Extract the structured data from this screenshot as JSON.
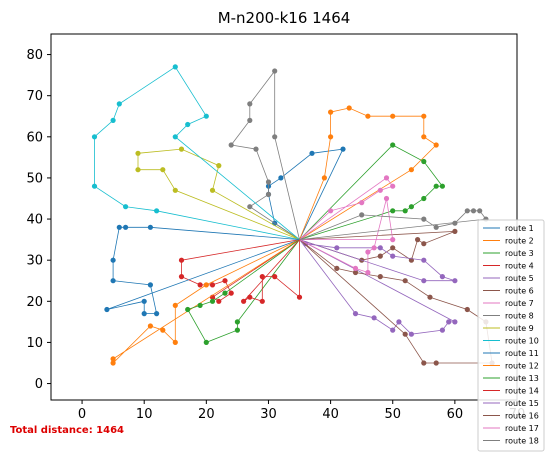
{
  "chart_data": {
    "type": "line",
    "title": "M-n200-k16 1464",
    "xlabel": "",
    "ylabel": "",
    "xlim": [
      -5,
      70
    ],
    "ylim": [
      -4,
      85
    ],
    "xticks": [
      0,
      10,
      20,
      30,
      40,
      50,
      60,
      70
    ],
    "yticks": [
      0,
      10,
      20,
      30,
      40,
      50,
      60,
      70,
      80
    ],
    "grid": false,
    "legend_position": "bottom-right",
    "annotation": {
      "text": "Total distance: 1464",
      "color": "#dd0000"
    },
    "depot": [
      35,
      35
    ],
    "series": [
      {
        "name": "route 1",
        "color": "#1f77b4",
        "points": [
          [
            35,
            35
          ],
          [
            31,
            39
          ],
          [
            30,
            46
          ],
          [
            30,
            48
          ],
          [
            32,
            50
          ],
          [
            37,
            56
          ],
          [
            42,
            57
          ],
          [
            35,
            35
          ]
        ]
      },
      {
        "name": "route 2",
        "color": "#ff7f0e",
        "points": [
          [
            35,
            35
          ],
          [
            39,
            50
          ],
          [
            40,
            60
          ],
          [
            40,
            66
          ],
          [
            43,
            67
          ],
          [
            46,
            65
          ],
          [
            50,
            65
          ],
          [
            55,
            65
          ],
          [
            55,
            60
          ],
          [
            57,
            58
          ],
          [
            53,
            52
          ],
          [
            35,
            35
          ]
        ]
      },
      {
        "name": "route 3",
        "color": "#2ca02c",
        "points": [
          [
            35,
            35
          ],
          [
            50,
            42
          ],
          [
            52,
            42
          ],
          [
            53,
            43
          ],
          [
            55,
            45
          ],
          [
            57,
            48
          ],
          [
            58,
            48
          ],
          [
            55,
            54
          ],
          [
            50,
            58
          ],
          [
            35,
            35
          ]
        ]
      },
      {
        "name": "route 4",
        "color": "#d62728",
        "points": [
          [
            35,
            35
          ],
          [
            16,
            30
          ],
          [
            16,
            26
          ],
          [
            19,
            24
          ],
          [
            21,
            24
          ],
          [
            23,
            25
          ],
          [
            24,
            22
          ],
          [
            22,
            20
          ],
          [
            21,
            21
          ],
          [
            35,
            35
          ]
        ]
      },
      {
        "name": "route 5",
        "color": "#9467bd",
        "points": [
          [
            35,
            35
          ],
          [
            44,
            17
          ],
          [
            47,
            16
          ],
          [
            50,
            13
          ],
          [
            51,
            15
          ],
          [
            53,
            12
          ],
          [
            58,
            13
          ],
          [
            59,
            15
          ],
          [
            60,
            15
          ],
          [
            35,
            35
          ]
        ]
      },
      {
        "name": "route 6",
        "color": "#8c564b",
        "points": [
          [
            35,
            35
          ],
          [
            45,
            30
          ],
          [
            48,
            31
          ],
          [
            50,
            33
          ],
          [
            53,
            30
          ],
          [
            54,
            35
          ],
          [
            55,
            34
          ],
          [
            60,
            37
          ],
          [
            35,
            35
          ]
        ]
      },
      {
        "name": "route 7",
        "color": "#e377c2",
        "points": [
          [
            35,
            35
          ],
          [
            40,
            42
          ],
          [
            45,
            44
          ],
          [
            48,
            47
          ],
          [
            50,
            48
          ],
          [
            49,
            50
          ],
          [
            35,
            35
          ]
        ]
      },
      {
        "name": "route 8",
        "color": "#7f7f7f",
        "points": [
          [
            35,
            35
          ],
          [
            27,
            43
          ],
          [
            30,
            46
          ],
          [
            30,
            49
          ],
          [
            28,
            57
          ],
          [
            24,
            58
          ],
          [
            27,
            64
          ],
          [
            27,
            68
          ],
          [
            31,
            76
          ],
          [
            31,
            60
          ],
          [
            35,
            35
          ]
        ]
      },
      {
        "name": "route 9",
        "color": "#bcbd22",
        "points": [
          [
            35,
            35
          ],
          [
            15,
            47
          ],
          [
            13,
            52
          ],
          [
            9,
            52
          ],
          [
            9,
            56
          ],
          [
            16,
            57
          ],
          [
            22,
            53
          ],
          [
            21,
            47
          ],
          [
            35,
            35
          ]
        ]
      },
      {
        "name": "route 10",
        "color": "#17becf",
        "points": [
          [
            35,
            35
          ],
          [
            12,
            42
          ],
          [
            7,
            43
          ],
          [
            2,
            48
          ],
          [
            2,
            60
          ],
          [
            5,
            64
          ],
          [
            6,
            68
          ],
          [
            15,
            77
          ],
          [
            20,
            65
          ],
          [
            17,
            63
          ],
          [
            15,
            60
          ],
          [
            35,
            35
          ]
        ]
      },
      {
        "name": "route 11",
        "color": "#1f77b4",
        "points": [
          [
            35,
            35
          ],
          [
            11,
            38
          ],
          [
            7,
            38
          ],
          [
            6,
            38
          ],
          [
            5,
            30
          ],
          [
            5,
            25
          ],
          [
            11,
            24
          ],
          [
            12,
            17
          ],
          [
            10,
            17
          ],
          [
            10,
            20
          ],
          [
            4,
            18
          ],
          [
            35,
            35
          ]
        ]
      },
      {
        "name": "route 12",
        "color": "#ff7f0e",
        "points": [
          [
            35,
            35
          ],
          [
            20,
            24
          ],
          [
            15,
            19
          ],
          [
            15,
            10
          ],
          [
            13,
            13
          ],
          [
            11,
            14
          ],
          [
            5,
            5
          ],
          [
            5,
            6
          ],
          [
            35,
            35
          ]
        ]
      },
      {
        "name": "route 13",
        "color": "#2ca02c",
        "points": [
          [
            35,
            35
          ],
          [
            23,
            22
          ],
          [
            21,
            20
          ],
          [
            19,
            19
          ],
          [
            17,
            18
          ],
          [
            20,
            10
          ],
          [
            25,
            13
          ],
          [
            25,
            15
          ],
          [
            35,
            35
          ]
        ]
      },
      {
        "name": "route 14",
        "color": "#d62728",
        "points": [
          [
            35,
            35
          ],
          [
            35,
            21
          ],
          [
            31,
            26
          ],
          [
            29,
            26
          ],
          [
            29,
            20
          ],
          [
            27,
            21
          ],
          [
            26,
            20
          ],
          [
            35,
            35
          ]
        ]
      },
      {
        "name": "route 15",
        "color": "#9467bd",
        "points": [
          [
            35,
            35
          ],
          [
            36,
            34
          ],
          [
            41,
            33
          ],
          [
            48,
            33
          ],
          [
            50,
            31
          ],
          [
            55,
            30
          ],
          [
            58,
            26
          ],
          [
            60,
            25
          ],
          [
            55,
            25
          ],
          [
            35,
            35
          ]
        ]
      },
      {
        "name": "route 16",
        "color": "#8c564b",
        "points": [
          [
            35,
            35
          ],
          [
            41,
            28
          ],
          [
            44,
            27
          ],
          [
            48,
            26
          ],
          [
            52,
            25
          ],
          [
            56,
            21
          ],
          [
            62,
            18
          ],
          [
            65,
            15
          ],
          [
            66,
            5
          ],
          [
            57,
            5
          ],
          [
            55,
            5
          ],
          [
            52,
            12
          ],
          [
            35,
            35
          ]
        ]
      },
      {
        "name": "route 17",
        "color": "#e377c2",
        "points": [
          [
            35,
            35
          ],
          [
            44,
            28
          ],
          [
            46,
            27
          ],
          [
            46,
            32
          ],
          [
            47,
            33
          ],
          [
            49,
            45
          ],
          [
            50,
            35
          ],
          [
            35,
            35
          ]
        ]
      },
      {
        "name": "route 18",
        "color": "#7f7f7f",
        "points": [
          [
            35,
            35
          ],
          [
            45,
            41
          ],
          [
            55,
            40
          ],
          [
            57,
            38
          ],
          [
            60,
            39
          ],
          [
            62,
            42
          ],
          [
            63,
            42
          ],
          [
            64,
            42
          ],
          [
            65,
            40
          ],
          [
            35,
            35
          ]
        ]
      }
    ]
  }
}
